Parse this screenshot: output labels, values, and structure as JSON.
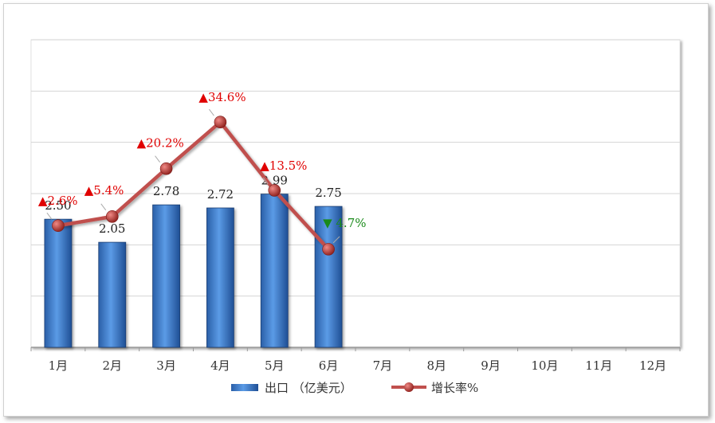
{
  "chart_data": {
    "type": "bar",
    "categories": [
      "1月",
      "2月",
      "3月",
      "4月",
      "5月",
      "6月",
      "7月",
      "8月",
      "9月",
      "10月",
      "11月",
      "12月"
    ],
    "series": [
      {
        "name": "出口（亿美元）",
        "type": "bar",
        "values": [
          2.5,
          2.05,
          2.78,
          2.72,
          2.99,
          2.75,
          null,
          null,
          null,
          null,
          null,
          null
        ],
        "labels": [
          "2.50",
          "2.05",
          "2.78",
          "2.72",
          "2.99",
          "2.75"
        ]
      },
      {
        "name": "增长率%",
        "type": "line",
        "values": [
          2.6,
          5.4,
          20.2,
          34.6,
          13.5,
          -4.7,
          null,
          null,
          null,
          null,
          null,
          null
        ],
        "labels": [
          "▲2.6%",
          "▲5.4%",
          "▲20.2%",
          "▲34.6%",
          "▲13.5%",
          "▼ 4.7%"
        ],
        "label_colors": [
          "#e00000",
          "#e00000",
          "#e00000",
          "#e00000",
          "#e00000",
          "#1a8a1a"
        ]
      }
    ],
    "bar_ylim": [
      0,
      6
    ],
    "line_ylim": [
      -35,
      60
    ],
    "grid": true,
    "legend_position": "bottom",
    "colors": {
      "bar": "#3e7fd0",
      "line": "#c0504d",
      "up": "#e00000",
      "down": "#1a8a1a"
    }
  },
  "legend": {
    "bar_label": "出口 （亿美元）",
    "line_label": "增长率%"
  }
}
